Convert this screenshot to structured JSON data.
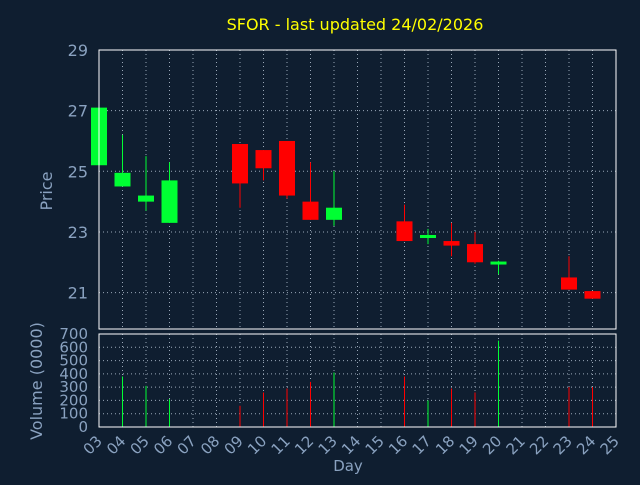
{
  "chart_data": {
    "type": "candlestick",
    "title": "SFOR - last updated 24/02/2026",
    "colors": {
      "background": "#0f1e30",
      "title": "#ffff00",
      "axis_label": "#8aa2c0",
      "tick_label": "#8aa2c0",
      "grid": "#9aa8b8",
      "plot_frame": "#ffffff",
      "up": "#00ff33",
      "down": "#ff0000"
    },
    "price_panel": {
      "ylabel": "Price",
      "ylim": [
        19.8,
        29
      ],
      "yticks": [
        "21",
        "23",
        "25",
        "27",
        "29"
      ]
    },
    "volume_panel": {
      "ylabel": "Volume (0000)",
      "ylim": [
        0,
        700
      ],
      "yticks": [
        "0",
        "100",
        "200",
        "300",
        "400",
        "500",
        "600",
        "700"
      ]
    },
    "xlabel": "Day",
    "xlim": [
      3,
      25
    ],
    "x_ticks": [
      "03",
      "04",
      "05",
      "06",
      "07",
      "08",
      "09",
      "10",
      "11",
      "12",
      "13",
      "14",
      "15",
      "16",
      "17",
      "18",
      "19",
      "20",
      "21",
      "22",
      "23",
      "24",
      "25"
    ],
    "candles": [
      {
        "day": 3,
        "open": 25.2,
        "high": 27.1,
        "low": 25.1,
        "close": 27.1,
        "volume": 0
      },
      {
        "day": 4,
        "open": 24.5,
        "high": 26.2,
        "low": 24.5,
        "close": 24.95,
        "volume": 380
      },
      {
        "day": 5,
        "open": 24.0,
        "high": 25.5,
        "low": 23.7,
        "close": 24.2,
        "volume": 310
      },
      {
        "day": 6,
        "open": 23.3,
        "high": 25.3,
        "low": 23.3,
        "close": 24.7,
        "volume": 210
      },
      {
        "day": 9,
        "open": 25.9,
        "high": 25.9,
        "low": 23.8,
        "close": 24.6,
        "volume": 160
      },
      {
        "day": 10,
        "open": 25.7,
        "high": 25.7,
        "low": 24.7,
        "close": 25.1,
        "volume": 260
      },
      {
        "day": 11,
        "open": 26.0,
        "high": 26.0,
        "low": 24.1,
        "close": 24.2,
        "volume": 290
      },
      {
        "day": 12,
        "open": 24.0,
        "high": 25.3,
        "low": 23.4,
        "close": 23.4,
        "volume": 340
      },
      {
        "day": 13,
        "open": 23.4,
        "high": 25.0,
        "low": 23.2,
        "close": 23.8,
        "volume": 410
      },
      {
        "day": 16,
        "open": 23.35,
        "high": 23.9,
        "low": 22.7,
        "close": 22.7,
        "volume": 380
      },
      {
        "day": 17,
        "open": 22.8,
        "high": 23.1,
        "low": 22.6,
        "close": 22.9,
        "volume": 200
      },
      {
        "day": 18,
        "open": 22.7,
        "high": 23.3,
        "low": 22.2,
        "close": 22.55,
        "volume": 290
      },
      {
        "day": 19,
        "open": 22.6,
        "high": 23.0,
        "low": 21.95,
        "close": 22.0,
        "volume": 260
      },
      {
        "day": 20,
        "open": 21.95,
        "high": 22.05,
        "low": 21.6,
        "close": 22.0,
        "volume": 650
      },
      {
        "day": 23,
        "open": 21.5,
        "high": 22.2,
        "low": 21.1,
        "close": 21.1,
        "volume": 300
      },
      {
        "day": 24,
        "open": 21.05,
        "high": 21.05,
        "low": 20.8,
        "close": 20.8,
        "volume": 300
      }
    ]
  }
}
